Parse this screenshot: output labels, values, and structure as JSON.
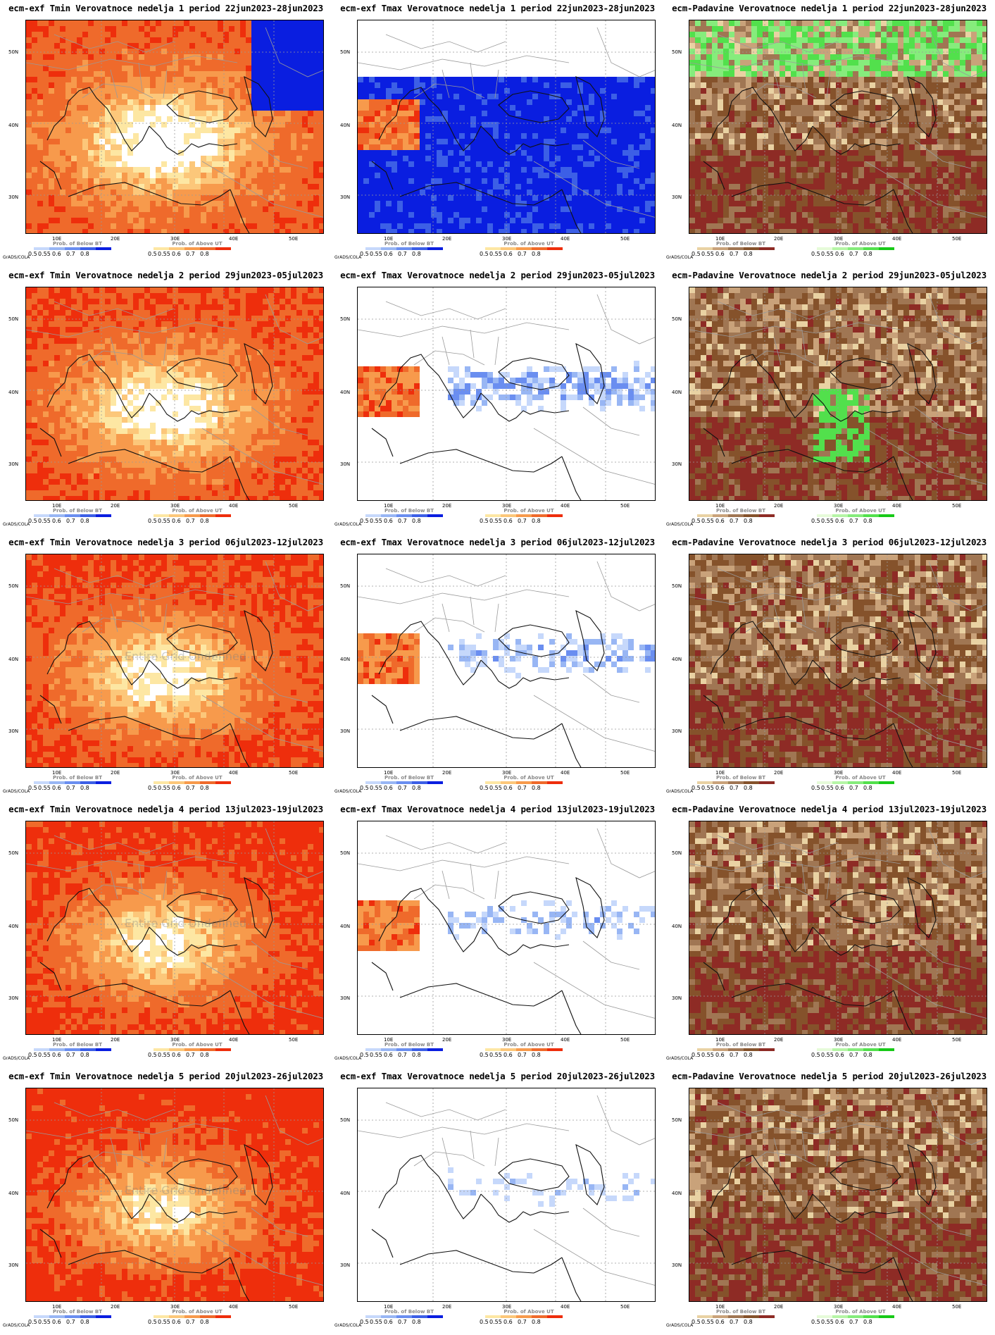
{
  "credit": "GrADS/COLA",
  "undefined_text": "Entire Grid Undefined",
  "lat_labels": [
    "50N",
    "40N",
    "30N"
  ],
  "lon_labels": [
    "10E",
    "20E",
    "30E",
    "40E",
    "50E"
  ],
  "legend": {
    "below_title": "Prob. of Below BT",
    "above_title": "Prob. of Above UT",
    "values_below": [
      "0.5",
      "0.55",
      "0.6",
      "0.7",
      "0.8"
    ],
    "values_above": [
      "0.5",
      "0.55",
      "0.6",
      "0.7",
      "0.8"
    ]
  },
  "colors": {
    "warm": [
      "#fde7a3",
      "#fcc77a",
      "#f79a4c",
      "#ef6a2b",
      "#ee2e0c"
    ],
    "cold": [
      "#c6d8fb",
      "#98b6f4",
      "#6a8ef0",
      "#3c5fe6",
      "#0a1ee0"
    ],
    "dry": [
      "#e9d2a3",
      "#c9a27a",
      "#a07653",
      "#85522b",
      "#8e2b25"
    ],
    "wet": [
      "#e6fbd9",
      "#b6f5a6",
      "#86ec7c",
      "#52e04c",
      "#18c918"
    ]
  },
  "panels": [
    {
      "title": "ecm-exf Tmin Verovatnoce nedelja 1 period 22jun2023-28jun2023",
      "var": "tmin",
      "left_legend": "cold",
      "right_legend": "warm"
    },
    {
      "title": "ecm-exf Tmax Verovatnoce nedelja 1 period 22jun2023-28jun2023",
      "var": "tmax",
      "left_legend": "cold",
      "right_legend": "warm"
    },
    {
      "title": "ecm-Padavine Verovatnoce nedelja 1 period 22jun2023-28jun2023",
      "var": "prec",
      "left_legend": "dry",
      "right_legend": "wet"
    },
    {
      "title": "ecm-exf Tmin Verovatnoce nedelja 2 period 29jun2023-05jul2023",
      "var": "tmin",
      "left_legend": "cold",
      "right_legend": "warm"
    },
    {
      "title": "ecm-exf Tmax Verovatnoce nedelja 2 period 29jun2023-05jul2023",
      "var": "tmax",
      "left_legend": "cold",
      "right_legend": "warm"
    },
    {
      "title": "ecm-Padavine Verovatnoce nedelja 2 period 29jun2023-05jul2023",
      "var": "prec",
      "left_legend": "dry",
      "right_legend": "wet"
    },
    {
      "title": "ecm-exf Tmin Verovatnoce nedelja 3 period 06jul2023-12jul2023",
      "var": "tmin",
      "left_legend": "cold",
      "right_legend": "warm"
    },
    {
      "title": "ecm-exf Tmax Verovatnoce nedelja 3 period 06jul2023-12jul2023",
      "var": "tmax",
      "left_legend": "cold",
      "right_legend": "warm"
    },
    {
      "title": "ecm-Padavine Verovatnoce nedelja 3 period 06jul2023-12jul2023",
      "var": "prec",
      "left_legend": "dry",
      "right_legend": "wet"
    },
    {
      "title": "ecm-exf Tmin Verovatnoce nedelja 4 period 13jul2023-19jul2023",
      "var": "tmin",
      "left_legend": "cold",
      "right_legend": "warm"
    },
    {
      "title": "ecm-exf Tmax Verovatnoce nedelja 4 period 13jul2023-19jul2023",
      "var": "tmax",
      "left_legend": "cold",
      "right_legend": "warm"
    },
    {
      "title": "ecm-Padavine Verovatnoce nedelja 4 period 13jul2023-19jul2023",
      "var": "prec",
      "left_legend": "dry",
      "right_legend": "wet"
    },
    {
      "title": "ecm-exf Tmin Verovatnoce nedelja 5 period 20jul2023-26jul2023",
      "var": "tmin",
      "left_legend": "cold",
      "right_legend": "warm"
    },
    {
      "title": "ecm-exf Tmax Verovatnoce nedelja 5 period 20jul2023-26jul2023",
      "var": "tmax",
      "left_legend": "cold",
      "right_legend": "warm"
    },
    {
      "title": "ecm-Padavine Verovatnoce nedelja 5 period 20jul2023-26jul2023",
      "var": "prec",
      "left_legend": "dry",
      "right_legend": "wet"
    }
  ]
}
